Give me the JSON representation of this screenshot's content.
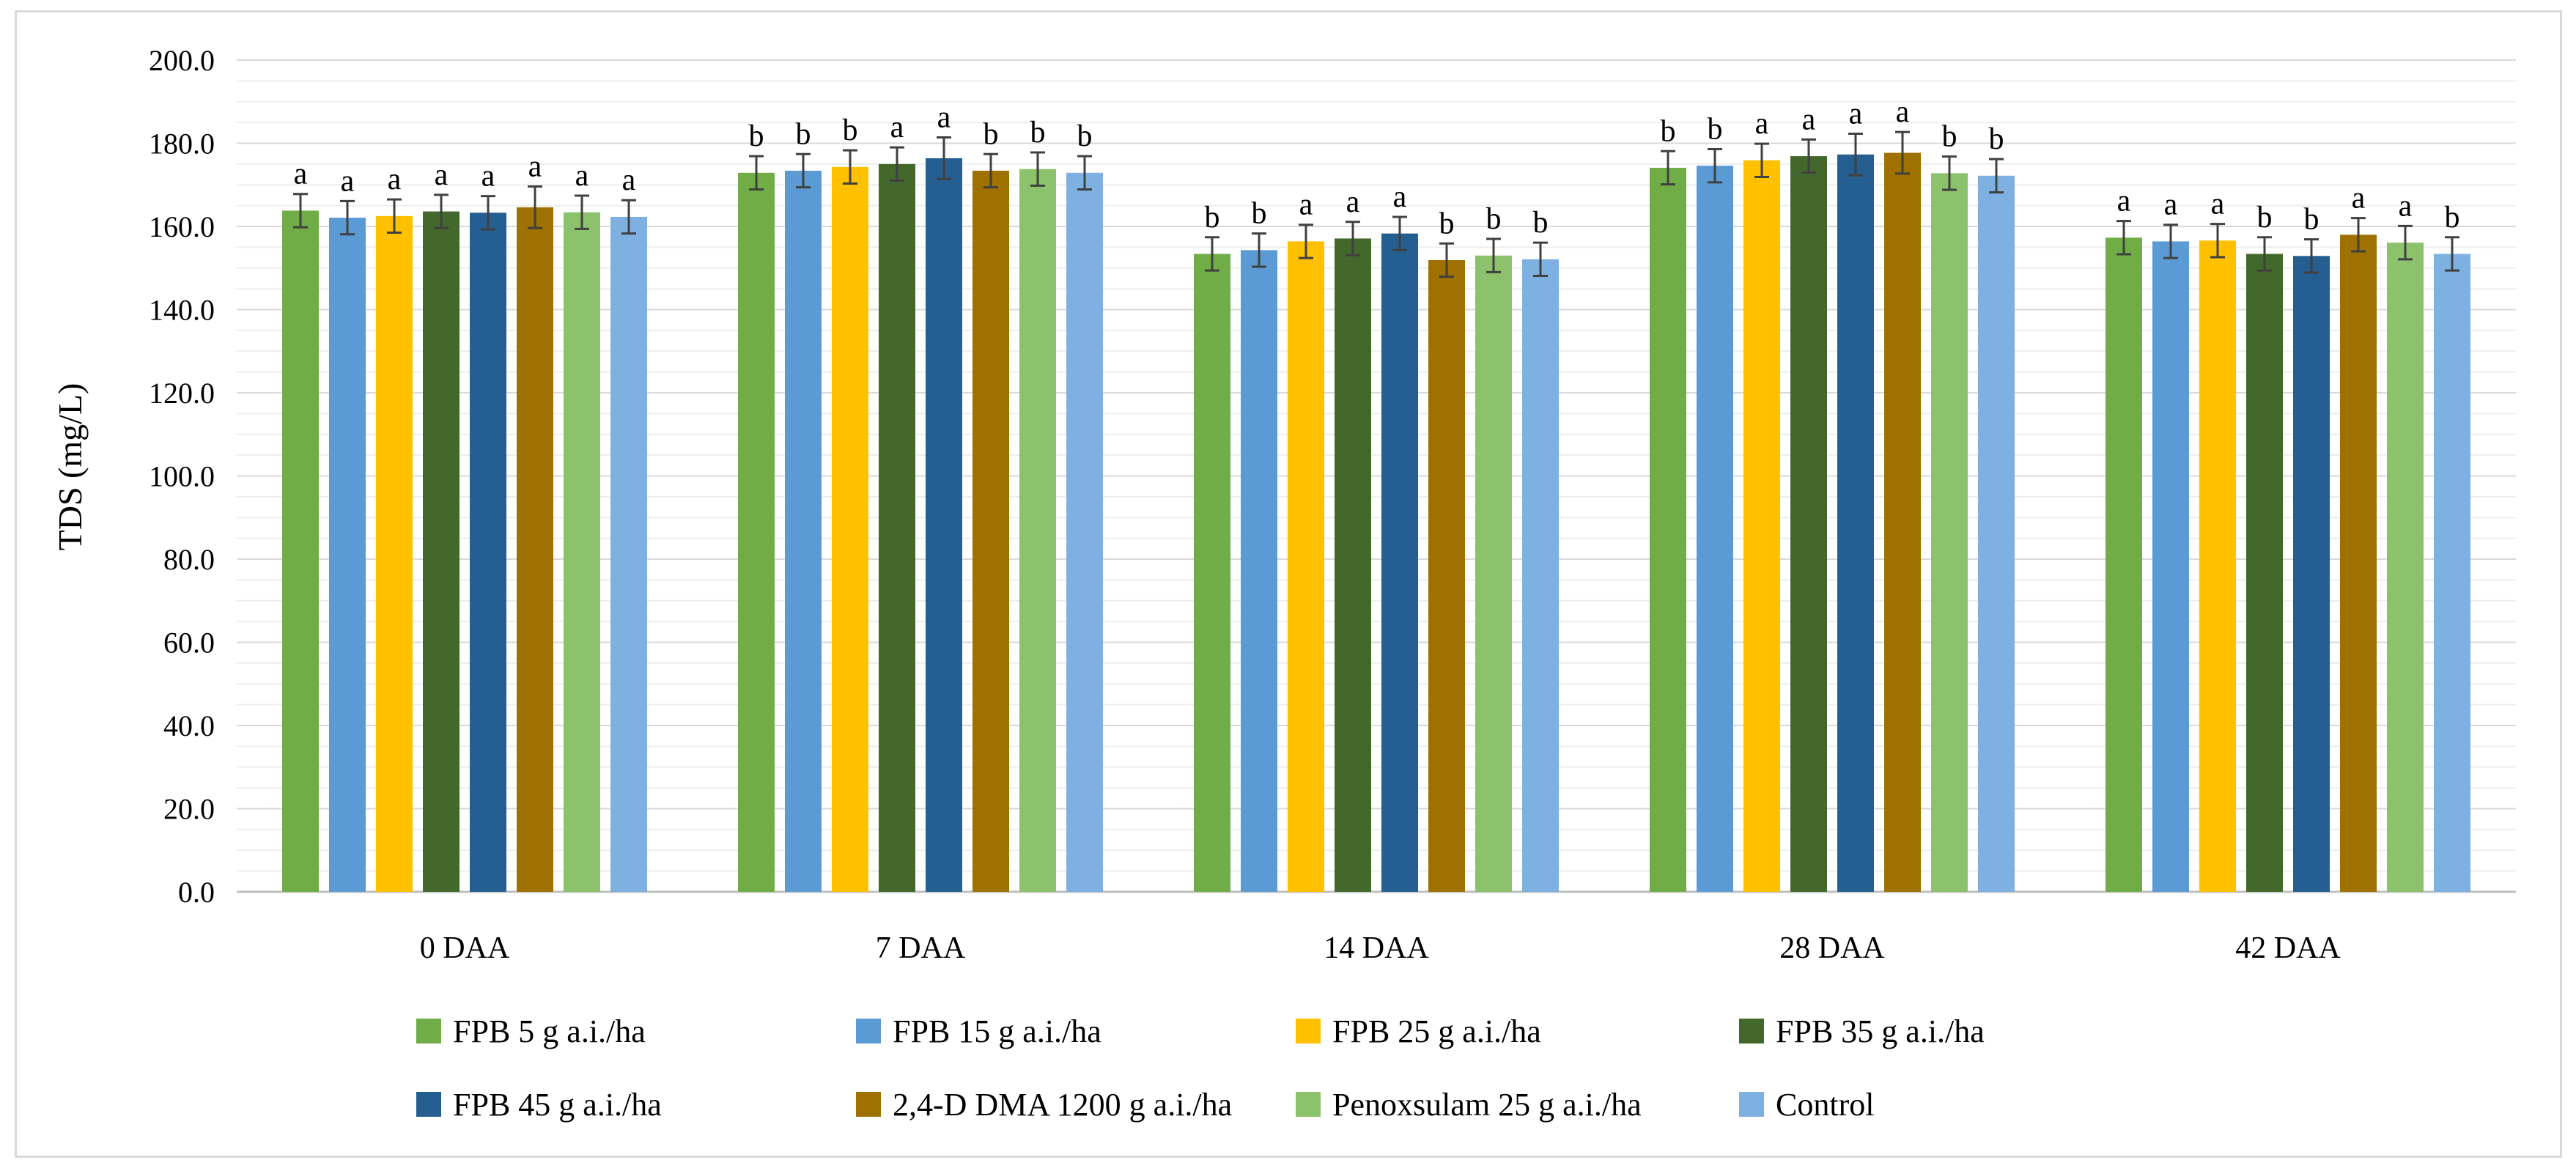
{
  "chart_data": {
    "type": "bar",
    "title": "",
    "xlabel": "",
    "ylabel": "TDS (mg/L)",
    "ylim": [
      0,
      200
    ],
    "yticks": [
      "0.0",
      "20.0",
      "40.0",
      "60.0",
      "80.0",
      "100.0",
      "120.0",
      "140.0",
      "160.0",
      "180.0",
      "200.0"
    ],
    "grid": true,
    "legend_position": "bottom",
    "categories": [
      "0 DAA",
      "7 DAA",
      "14 DAA",
      "28 DAA",
      "42 DAA"
    ],
    "series": [
      {
        "name": "FPB 5 g a.i./ha",
        "color": "#70ad47",
        "values": [
          163.8,
          172.9,
          153.4,
          174.1,
          157.3
        ],
        "errors": [
          4,
          4,
          4,
          4,
          4
        ],
        "labels": [
          "a",
          "b",
          "b",
          "b",
          "a"
        ]
      },
      {
        "name": "FPB 15 g a.i./ha",
        "color": "#5b9bd5",
        "values": [
          162.1,
          173.4,
          154.3,
          174.6,
          156.4
        ],
        "errors": [
          4,
          4,
          4,
          4,
          4
        ],
        "labels": [
          "a",
          "b",
          "b",
          "b",
          "a"
        ]
      },
      {
        "name": "FPB 25 g a.i./ha",
        "color": "#ffc000",
        "values": [
          162.5,
          174.3,
          156.4,
          175.9,
          156.6
        ],
        "errors": [
          4,
          4,
          4,
          4,
          4
        ],
        "labels": [
          "a",
          "b",
          "a",
          "a",
          "a"
        ]
      },
      {
        "name": "FPB 35 g a.i./ha",
        "color": "#43682b",
        "values": [
          163.6,
          175.0,
          157.1,
          176.9,
          153.4
        ],
        "errors": [
          4,
          4,
          4,
          4,
          4
        ],
        "labels": [
          "a",
          "a",
          "a",
          "a",
          "b"
        ]
      },
      {
        "name": "FPB 45 g a.i./ha",
        "color": "#255e91",
        "values": [
          163.3,
          176.4,
          158.3,
          177.3,
          152.9
        ],
        "errors": [
          4,
          5,
          4,
          5,
          4
        ],
        "labels": [
          "a",
          "a",
          "a",
          "a",
          "b"
        ]
      },
      {
        "name": "2,4-D DMA 1200 g a.i./ha",
        "color": "#9e7100",
        "values": [
          164.6,
          173.4,
          151.9,
          177.7,
          158.0
        ],
        "errors": [
          5,
          4,
          4,
          5,
          4
        ],
        "labels": [
          "a",
          "b",
          "b",
          "a",
          "a"
        ]
      },
      {
        "name": "Penoxsulam 25 g a.i./ha",
        "color": "#8dc26c",
        "values": [
          163.4,
          173.8,
          153.0,
          172.8,
          156.1
        ],
        "errors": [
          4,
          4,
          4,
          4,
          4
        ],
        "labels": [
          "a",
          "b",
          "b",
          "b",
          "a"
        ]
      },
      {
        "name": "Control",
        "color": "#7eb1e1",
        "values": [
          162.3,
          172.9,
          152.1,
          172.2,
          153.4
        ],
        "errors": [
          4,
          4,
          4,
          4,
          4
        ],
        "labels": [
          "a",
          "b",
          "b",
          "b",
          "b"
        ]
      }
    ]
  }
}
